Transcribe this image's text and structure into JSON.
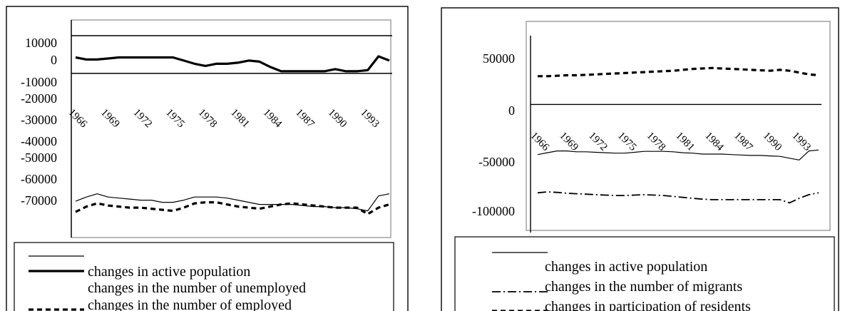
{
  "chart_data": [
    {
      "type": "line",
      "title": "",
      "xlabel": "",
      "ylabel": "",
      "x": [
        1966,
        1967,
        1968,
        1969,
        1970,
        1971,
        1972,
        1973,
        1974,
        1975,
        1976,
        1977,
        1978,
        1979,
        1980,
        1981,
        1982,
        1983,
        1984,
        1985,
        1986,
        1987,
        1988,
        1989,
        1990,
        1991,
        1992,
        1993,
        1994,
        1995
      ],
      "x_tick_labels": [
        "1966",
        "1969",
        "1972",
        "1975",
        "1978",
        "1981",
        "1984",
        "1987",
        "1990",
        "1993"
      ],
      "y_tick_labels": [
        "10000",
        "0",
        "-10000",
        "-20000",
        "-30000",
        "-40000",
        "-50000",
        "-60000",
        "-70000"
      ],
      "ylim": [
        -71000,
        11000
      ],
      "series": [
        {
          "name": "changes in active population",
          "style": "thin",
          "values": [
            -60000,
            -58000,
            -56500,
            -58000,
            -58500,
            -59000,
            -59500,
            -59500,
            -60500,
            -60500,
            -59500,
            -58000,
            -58000,
            -58000,
            -58500,
            -59500,
            -60500,
            -61500,
            -61500,
            -61500,
            -61500,
            -62000,
            -62500,
            -62500,
            -63000,
            -63000,
            -63500,
            -64500,
            -57500,
            -56500
          ]
        },
        {
          "name": "changes in the number of unemployed",
          "style": "thick",
          "values": [
            7500,
            6500,
            6500,
            7000,
            7500,
            7500,
            7500,
            7500,
            7500,
            7500,
            6000,
            4500,
            3500,
            4500,
            4500,
            5000,
            6000,
            5500,
            3000,
            1000,
            1000,
            1000,
            1000,
            1000,
            2000,
            1000,
            1000,
            1500,
            8000,
            6000
          ]
        },
        {
          "name": "changes in the number of employed",
          "style": "dashed",
          "values": [
            -65000,
            -62500,
            -61000,
            -62000,
            -62500,
            -63000,
            -63000,
            -63500,
            -64000,
            -64500,
            -63000,
            -61000,
            -60500,
            -60500,
            -61500,
            -62500,
            -63000,
            -63500,
            -62500,
            -61500,
            -61000,
            -61500,
            -62000,
            -62500,
            -63000,
            -63000,
            -63000,
            -66000,
            -63000,
            -61500
          ]
        }
      ],
      "legend": {
        "placement": "bottom",
        "entries": [
          "changes in active population",
          "changes in the number of unemployed",
          "changes in the number of employed"
        ]
      }
    },
    {
      "type": "line",
      "title": "",
      "xlabel": "",
      "ylabel": "",
      "x": [
        1966,
        1967,
        1968,
        1969,
        1970,
        1971,
        1972,
        1973,
        1974,
        1975,
        1976,
        1977,
        1978,
        1979,
        1980,
        1981,
        1982,
        1983,
        1984,
        1985,
        1986,
        1987,
        1988,
        1989,
        1990,
        1991,
        1992,
        1993,
        1994,
        1995
      ],
      "x_tick_labels": [
        "1966",
        "1969",
        "1972",
        "1975",
        "1978",
        "1981",
        "1984",
        "1987",
        "1990",
        "1993"
      ],
      "y_tick_labels": [
        "50000",
        "0",
        "-50000",
        "-100000",
        "-150000"
      ],
      "ylim": [
        -150000,
        52000
      ],
      "series": [
        {
          "name": "changes in active population",
          "style": "thin",
          "values": [
            -55000,
            -53000,
            -51000,
            -51000,
            -52000,
            -52000,
            -52500,
            -53000,
            -53500,
            -53500,
            -52500,
            -51500,
            -51500,
            -51500,
            -52000,
            -53000,
            -53500,
            -54500,
            -54500,
            -54500,
            -55000,
            -55500,
            -56000,
            -56000,
            -56500,
            -57000,
            -59000,
            -61000,
            -51000,
            -50000
          ]
        },
        {
          "name": "changes in the number of migrants",
          "style": "dashdot",
          "values": [
            -97000,
            -96000,
            -96500,
            -97500,
            -98000,
            -98500,
            -99000,
            -99500,
            -100000,
            -100000,
            -99500,
            -99000,
            -99500,
            -100000,
            -101000,
            -102000,
            -103000,
            -104000,
            -104500,
            -104500,
            -104500,
            -104500,
            -104500,
            -104500,
            -104500,
            -104500,
            -108000,
            -103000,
            -99000,
            -97000
          ]
        },
        {
          "name": "changes in participation of residents",
          "style": "dashed",
          "values": [
            31000,
            31000,
            31500,
            32000,
            32000,
            32500,
            33000,
            33500,
            34000,
            34500,
            35000,
            35500,
            36000,
            36500,
            37000,
            38000,
            39000,
            39500,
            40000,
            39500,
            39000,
            38500,
            38000,
            37500,
            37000,
            38000,
            37000,
            35000,
            33000,
            32000
          ]
        }
      ],
      "legend": {
        "placement": "bottom",
        "entries": [
          "changes in active population",
          "changes in the number of migrants",
          "changes in participation of residents"
        ]
      }
    }
  ]
}
